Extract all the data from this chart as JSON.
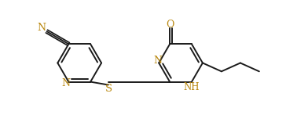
{
  "background": "#ffffff",
  "line_color": "#1a1a1a",
  "heteroatom_color": "#b8860b",
  "figsize": [
    3.92,
    1.47
  ],
  "dpi": 100,
  "xlim": [
    0,
    10
  ],
  "ylim": [
    0,
    3.8
  ]
}
